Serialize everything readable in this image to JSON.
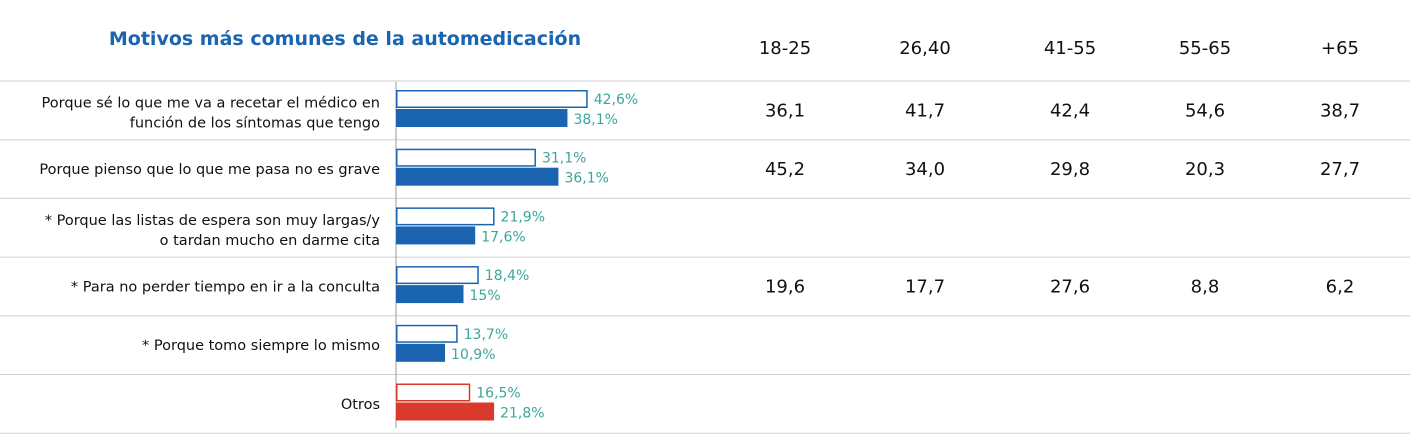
{
  "chart_data": {
    "type": "bar",
    "title": "Motivos más comunes de la automedicación",
    "categories": [
      [
        "Porque sé lo que me va a recetar el médico en",
        "función de los síntomas que tengo"
      ],
      [
        "Porque pienso que lo que me pasa no es grave"
      ],
      [
        "* Porque las listas de espera son muy largas/y",
        "o tardan mucho en darme cita"
      ],
      [
        "* Para no perder tiempo en ir a la conculta"
      ],
      [
        "* Porque tomo siempre lo mismo"
      ],
      [
        "Otros"
      ]
    ],
    "series": [
      {
        "values": [
          42.6,
          31.1,
          21.9,
          18.4,
          13.7,
          16.5
        ],
        "labels": [
          "42,6%",
          "31,1%",
          "21,9%",
          "18,4%",
          "13,7%",
          "16,5%"
        ]
      },
      {
        "values": [
          38.1,
          36.1,
          17.6,
          15,
          10.9,
          21.8
        ],
        "labels": [
          "38,1%",
          "36,1%",
          "17,6%",
          "15%",
          "10,9%",
          "21,8%"
        ]
      }
    ],
    "highlight_category_index": 5,
    "colors": {
      "title": "#1a64b0",
      "bar_blue": "#1a64b0",
      "bar_red": "#d93a2b",
      "value_label": "#3aa79b",
      "text": "#111111",
      "rule": "#cfcfcf"
    },
    "table": {
      "columns": [
        "18-25",
        "26,40",
        "41-55",
        "55-65",
        "+65"
      ],
      "rows": [
        [
          "36,1",
          "41,7",
          "42,4",
          "54,6",
          "38,7"
        ],
        [
          "45,2",
          "34,0",
          "29,8",
          "20,3",
          "27,7"
        ],
        [
          "",
          "",
          "",
          "",
          ""
        ],
        [
          "19,6",
          "17,7",
          "27,6",
          "8,8",
          "6,2"
        ],
        [
          "",
          "",
          "",
          "",
          ""
        ],
        [
          "",
          "",
          "",
          "",
          ""
        ]
      ]
    }
  }
}
